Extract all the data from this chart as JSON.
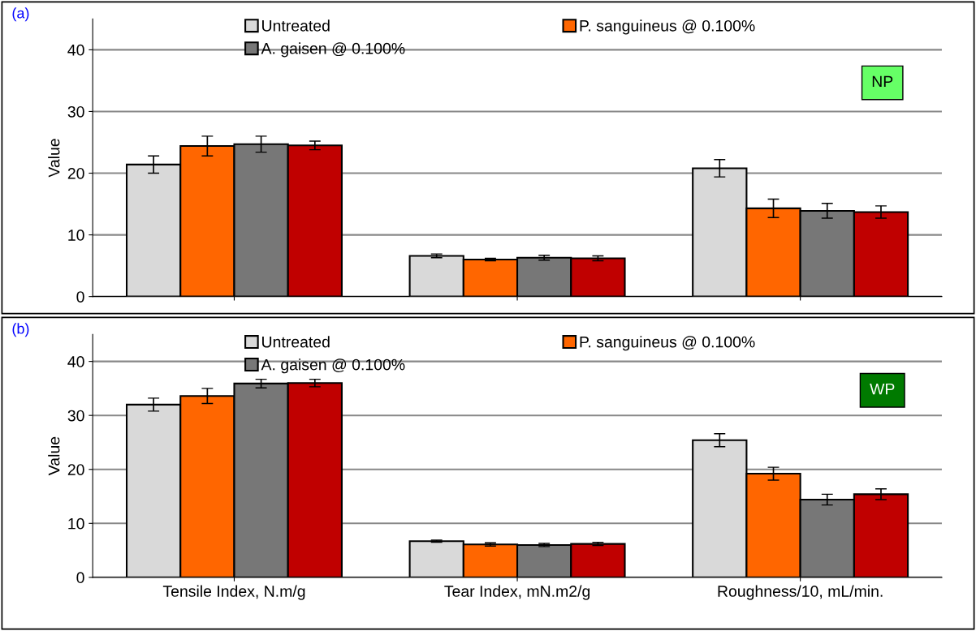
{
  "chart_data": [
    {
      "type": "bar",
      "ylabel": "Value",
      "categories": [
        null,
        null,
        null
      ],
      "ylim": [
        0,
        45
      ],
      "yticks": [
        0,
        10,
        20,
        30,
        40
      ],
      "grid": "y",
      "legend": "top",
      "tick_labels": "y",
      "annotations": [
        "(a)",
        "NP"
      ],
      "series": [
        {
          "name": "Untreated",
          "color": "#d9d9d9",
          "values": [
            21.4,
            6.6,
            20.8
          ],
          "errors": [
            1.4,
            0.3,
            1.4
          ]
        },
        {
          "name": "P. sanguineus @ 0.100%",
          "color": "#ff6600",
          "values": [
            24.4,
            6.0,
            14.3
          ],
          "errors": [
            1.6,
            0.2,
            1.5
          ]
        },
        {
          "name": "A. gaisen @ 0.100%",
          "color": "#777777",
          "values": [
            24.7,
            6.3,
            13.9
          ],
          "errors": [
            1.3,
            0.4,
            1.2
          ]
        },
        {
          "color": "#c00000",
          "values": [
            24.5,
            6.2,
            13.7
          ],
          "errors": [
            0.7,
            0.4,
            1.0
          ]
        }
      ]
    },
    {
      "type": "bar",
      "ylabel": "Value",
      "categories": [
        "Tensile Index, N.m/g",
        "Tear Index, mN.m2/g",
        "Roughness/10, mL/min."
      ],
      "ylim": [
        0,
        45
      ],
      "yticks": [
        0,
        10,
        20,
        30,
        40
      ],
      "grid": "y",
      "legend": "top",
      "annotations": [
        "(b)",
        "WP"
      ],
      "series": [
        {
          "name": "Untreated",
          "color": "#d9d9d9",
          "values": [
            32.0,
            6.7,
            25.4
          ],
          "errors": [
            1.2,
            0.2,
            1.2
          ]
        },
        {
          "name": "P. sanguineus @ 0.100%",
          "color": "#ff6600",
          "values": [
            33.6,
            6.1,
            19.2
          ],
          "errors": [
            1.4,
            0.3,
            1.2
          ]
        },
        {
          "name": "A. gaisen @ 0.100%",
          "color": "#777777",
          "values": [
            35.9,
            6.0,
            14.4
          ],
          "errors": [
            0.8,
            0.3,
            1.0
          ]
        },
        {
          "color": "#c00000",
          "values": [
            36.0,
            6.2,
            15.4
          ],
          "errors": [
            0.7,
            0.3,
            1.0
          ]
        }
      ]
    }
  ]
}
